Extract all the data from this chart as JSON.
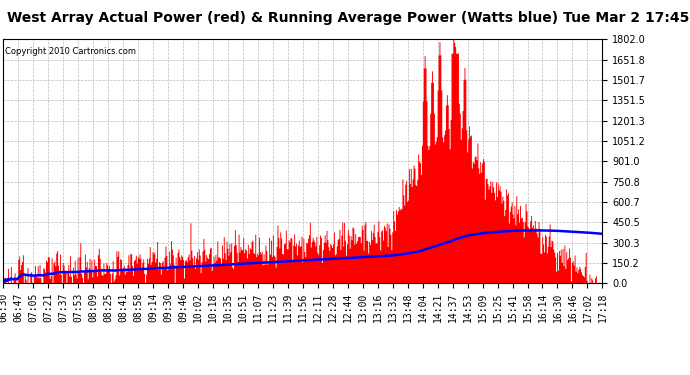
{
  "title": "West Array Actual Power (red) & Running Average Power (Watts blue) Tue Mar 2 17:45",
  "copyright": "Copyright 2010 Cartronics.com",
  "y_max": 1802.0,
  "y_min": 0.0,
  "yticks": [
    0.0,
    150.2,
    300.3,
    450.5,
    600.7,
    750.8,
    901.0,
    1051.2,
    1201.3,
    1351.5,
    1501.7,
    1651.8,
    1802.0
  ],
  "x_labels": [
    "06:30",
    "06:47",
    "07:05",
    "07:21",
    "07:37",
    "07:53",
    "08:09",
    "08:25",
    "08:41",
    "08:58",
    "09:14",
    "09:30",
    "09:46",
    "10:02",
    "10:18",
    "10:35",
    "10:51",
    "11:07",
    "11:23",
    "11:39",
    "11:56",
    "12:11",
    "12:28",
    "12:44",
    "13:00",
    "13:16",
    "13:32",
    "13:48",
    "14:04",
    "14:21",
    "14:37",
    "14:53",
    "15:09",
    "15:25",
    "15:41",
    "15:58",
    "16:14",
    "16:30",
    "16:46",
    "17:02",
    "17:18"
  ],
  "background_color": "#ffffff",
  "plot_bg_color": "#ffffff",
  "grid_color": "#aaaaaa",
  "bar_color": "#ff0000",
  "line_color": "#0000ff",
  "title_fontsize": 10,
  "tick_fontsize": 7
}
